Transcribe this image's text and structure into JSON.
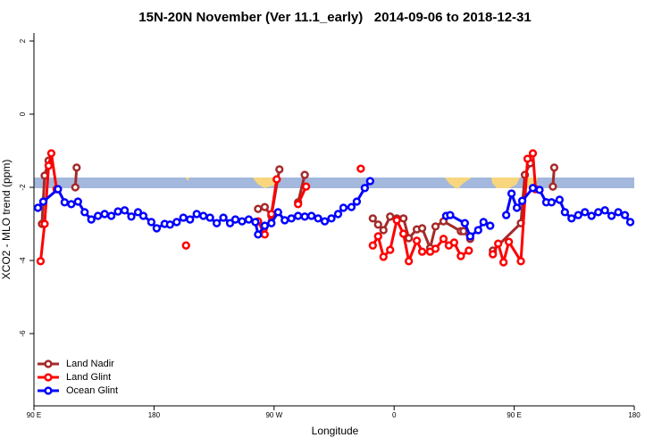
{
  "chart_data": {
    "type": "line",
    "title": "15N-20N November (Ver 11.1_early)   2014-09-06 to 2018-12-31",
    "x_label": "Longitude",
    "y_label": "XCO2 - MLO trend (ppm)",
    "xlim": [
      90,
      540
    ],
    "xticks": [
      {
        "value": 90,
        "label": "90 E"
      },
      {
        "value": 180,
        "label": "180"
      },
      {
        "value": 270,
        "label": "90 W"
      },
      {
        "value": 360,
        "label": "0"
      },
      {
        "value": 450,
        "label": "90 E"
      },
      {
        "value": 540,
        "label": "180"
      }
    ],
    "ylim": [
      -8,
      2.2
    ],
    "yticks": [
      2,
      0,
      -2,
      -4,
      -6
    ],
    "legend": "bottomleft",
    "series": [
      {
        "name": "Land Nadir",
        "color": "#a52a2a",
        "x": [
          96,
          98,
          101,
          null,
          121,
          122,
          null,
          258,
          263,
          268,
          274,
          null,
          288,
          293,
          null,
          344,
          348,
          352,
          357,
          362,
          367,
          371,
          377,
          381,
          387,
          391,
          397,
          410,
          412,
          417,
          null,
          434,
          455,
          458,
          462,
          null,
          479,
          480
        ],
        "values": [
          -3.0,
          -1.68,
          -1.27,
          null,
          -2.0,
          -1.46,
          null,
          -2.59,
          -2.54,
          -2.78,
          -1.51,
          null,
          -2.41,
          -1.66,
          null,
          -2.85,
          -3.02,
          -3.17,
          -2.8,
          -2.85,
          -2.85,
          -3.39,
          -3.15,
          -3.12,
          -3.66,
          -3.07,
          -2.93,
          -3.2,
          -3.2,
          -3.41,
          null,
          -3.73,
          -2.98,
          -1.66,
          -1.34,
          null,
          -1.98,
          -1.46
        ]
      },
      {
        "name": "Land Glint",
        "color": "#ff0000",
        "x": [
          95,
          98,
          101,
          103,
          107,
          null,
          204,
          null,
          258,
          263,
          268,
          272,
          null,
          288,
          294,
          null,
          335,
          null,
          344,
          348,
          352,
          357,
          362,
          367,
          371,
          377,
          381,
          387,
          391,
          397,
          401,
          405,
          410,
          416,
          null,
          434,
          438,
          442,
          446,
          455,
          460,
          464,
          466
        ],
        "values": [
          -4.02,
          -3.0,
          -1.41,
          -1.07,
          -2.05,
          null,
          -3.59,
          null,
          -2.93,
          -3.29,
          -2.73,
          -1.78,
          null,
          -2.46,
          -1.98,
          null,
          -1.49,
          null,
          -3.59,
          -3.34,
          -3.9,
          -3.71,
          -2.9,
          -3.27,
          -4.02,
          -3.46,
          -3.76,
          -3.76,
          -3.68,
          -3.41,
          -3.59,
          -3.51,
          -3.88,
          -3.73,
          null,
          -3.83,
          -3.54,
          -4.05,
          -3.49,
          -4.02,
          -1.22,
          -1.07,
          -2.05
        ]
      },
      {
        "name": "Ocean Glint",
        "color": "#0000ff",
        "x": [
          93,
          97,
          108,
          113,
          118,
          123,
          128,
          133,
          138,
          143,
          148,
          153,
          158,
          163,
          168,
          172,
          178,
          182,
          188,
          192,
          197,
          202,
          207,
          212,
          217,
          222,
          227,
          232,
          237,
          241,
          246,
          251,
          256,
          258,
          263,
          268,
          273,
          278,
          283,
          288,
          293,
          298,
          303,
          308,
          313,
          318,
          322,
          328,
          332,
          338,
          342,
          null,
          399,
          402,
          413,
          417,
          423,
          427,
          432,
          null,
          444,
          448,
          452,
          456,
          464,
          469,
          474,
          478,
          484,
          488,
          493,
          498,
          503,
          508,
          513,
          518,
          523,
          528,
          533,
          537
        ],
        "values": [
          -2.56,
          -2.39,
          -2.05,
          -2.41,
          -2.46,
          -2.39,
          -2.68,
          -2.88,
          -2.78,
          -2.73,
          -2.78,
          -2.66,
          -2.63,
          -2.8,
          -2.68,
          -2.78,
          -2.95,
          -3.12,
          -3.0,
          -3.02,
          -2.95,
          -2.83,
          -2.88,
          -2.73,
          -2.78,
          -2.83,
          -2.98,
          -2.83,
          -2.98,
          -2.88,
          -2.93,
          -2.88,
          -2.95,
          -3.29,
          -3.05,
          -2.98,
          -2.68,
          -2.9,
          -2.85,
          -2.78,
          -2.8,
          -2.78,
          -2.85,
          -2.93,
          -2.85,
          -2.73,
          -2.56,
          -2.54,
          -2.39,
          -2.02,
          -1.83,
          null,
          -2.78,
          -2.76,
          -2.98,
          -3.34,
          -3.17,
          -2.95,
          -3.05,
          null,
          -2.76,
          -2.17,
          -2.56,
          -2.37,
          -2.02,
          -2.07,
          -2.41,
          -2.41,
          -2.34,
          -2.68,
          -2.85,
          -2.76,
          -2.68,
          -2.78,
          -2.68,
          -2.63,
          -2.78,
          -2.68,
          -2.76,
          -2.95
        ]
      }
    ]
  }
}
